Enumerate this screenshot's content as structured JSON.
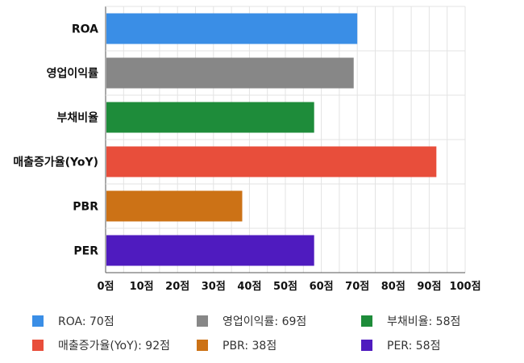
{
  "chart_data": {
    "type": "bar",
    "orientation": "horizontal",
    "categories": [
      "ROA",
      "영업이익률",
      "부채비율",
      "매출증가율(YoY)",
      "PBR",
      "PER"
    ],
    "values": [
      70,
      69,
      58,
      92,
      38,
      58
    ],
    "colors": [
      "#3a8ee6",
      "#878787",
      "#1e8c3a",
      "#e84e3b",
      "#cc7216",
      "#4f1bbf"
    ],
    "xlim": [
      0,
      100
    ],
    "xticks": [
      "0점",
      "10점",
      "20점",
      "30점",
      "40점",
      "50점",
      "60점",
      "70점",
      "80점",
      "90점",
      "100점"
    ],
    "grid": true,
    "legend_position": "bottom",
    "legend": [
      {
        "label": "ROA: 70점",
        "color": "#3a8ee6"
      },
      {
        "label": "영업이익률: 69점",
        "color": "#878787"
      },
      {
        "label": "부채비율: 58점",
        "color": "#1e8c3a"
      },
      {
        "label": "매출증가율(YoY): 92점",
        "color": "#e84e3b"
      },
      {
        "label": "PBR: 38점",
        "color": "#cc7216"
      },
      {
        "label": "PER: 58점",
        "color": "#4f1bbf"
      }
    ]
  }
}
